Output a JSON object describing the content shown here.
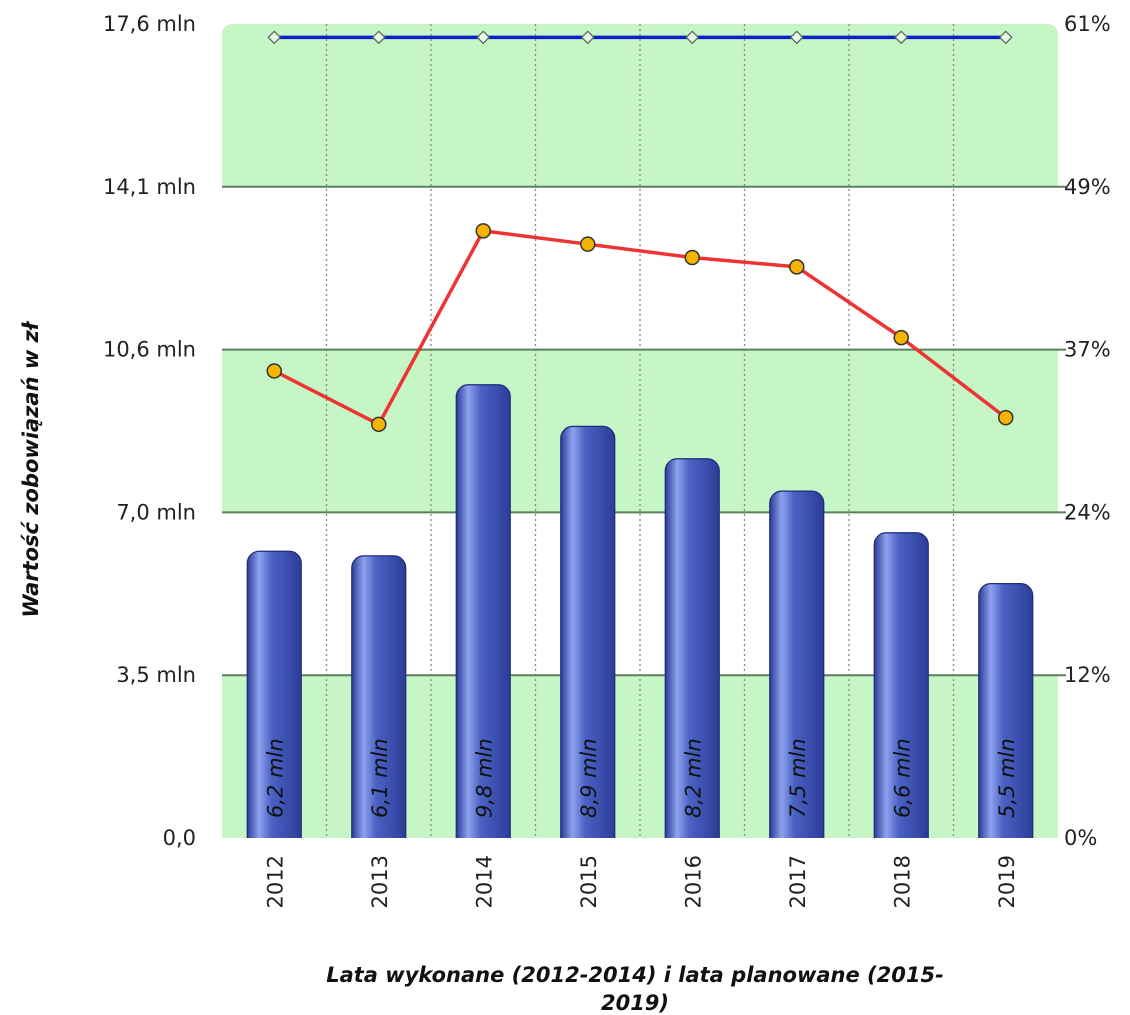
{
  "chart_data": {
    "type": "bar",
    "categories": [
      "2012",
      "2013",
      "2014",
      "2015",
      "2016",
      "2017",
      "2018",
      "2019"
    ],
    "series": [
      {
        "kind": "bar",
        "axis": "left",
        "values": [
          6.2,
          6.1,
          9.8,
          8.9,
          8.2,
          7.5,
          6.6,
          5.5
        ],
        "labels": [
          "6,2 mln",
          "6,1 mln",
          "9,8 mln",
          "8,9 mln",
          "8,2 mln",
          "7,5 mln",
          "6,6 mln",
          "5,5 mln"
        ],
        "color": "#3a4fb0"
      },
      {
        "kind": "line",
        "axis": "right",
        "values": [
          35,
          31,
          45.5,
          44.5,
          43.5,
          42.8,
          37.5,
          31.5
        ],
        "color": "#ee3333",
        "marker_color": "#f4b400"
      },
      {
        "kind": "line",
        "axis": "right",
        "values": [
          60,
          60,
          60,
          60,
          60,
          60,
          60,
          60
        ],
        "color": "#0a1fd0",
        "marker_color": "#e9f9e9"
      }
    ],
    "ylabel": "Wartość zobowiązań w zł",
    "xlabel_lines": [
      "Lata wykonane (2012-2014) i lata planowane (2015-",
      "2019)"
    ],
    "ylim": [
      0,
      17.6
    ],
    "y2lim": [
      0,
      61
    ],
    "yticks": [
      "0,0",
      "3,5 mln",
      "7,0 mln",
      "10,6 mln",
      "14,1 mln",
      "17,6 mln"
    ],
    "y2ticks": [
      "0%",
      "12%",
      "24%",
      "37%",
      "49%",
      "61%"
    ],
    "grid": true,
    "band_colors": [
      "#c6f5c6",
      "#ffffff"
    ]
  }
}
